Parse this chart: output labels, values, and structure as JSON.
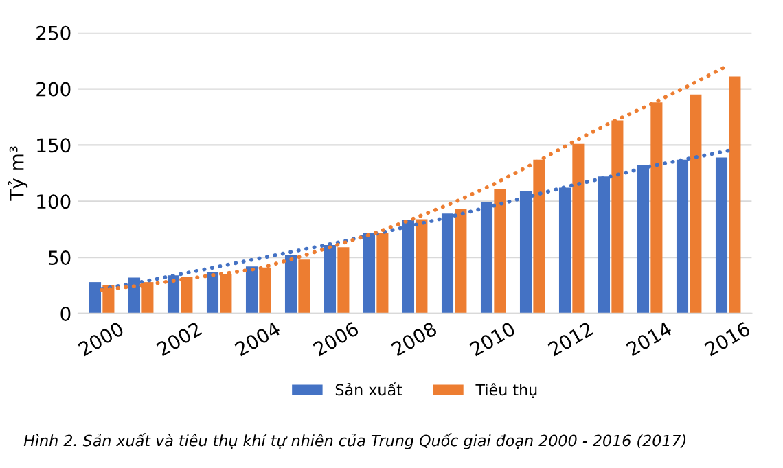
{
  "chart_data": {
    "type": "bar",
    "ylabel": "Tỷ m³",
    "categories": [
      "2000",
      null,
      "2002",
      null,
      "2004",
      null,
      "2006",
      null,
      "2008",
      null,
      "2010",
      null,
      "2012",
      null,
      "2014",
      null,
      "2016"
    ],
    "series": [
      {
        "name": "Sản xuất",
        "color": "#4472c4",
        "values": [
          28,
          32,
          34,
          37,
          42,
          52,
          61,
          72,
          83,
          89,
          99,
          109,
          112,
          122,
          132,
          137,
          139
        ]
      },
      {
        "name": "Tiêu thụ",
        "color": "#ed7d31",
        "values": [
          25,
          28,
          33,
          35,
          41,
          48,
          59,
          72,
          84,
          93,
          111,
          137,
          151,
          172,
          188,
          195,
          211
        ]
      },
      {
        "type": "line",
        "color": "#4472c4",
        "line_style": "dotted",
        "values": [
          22,
          28,
          35,
          42,
          49,
          56,
          63,
          71,
          79,
          87,
          96,
          105,
          114,
          122,
          131,
          138,
          145
        ]
      },
      {
        "type": "line",
        "color": "#ed7d31",
        "line_style": "dotted",
        "values": [
          21,
          25,
          30,
          35,
          40,
          50,
          61,
          72,
          85,
          99,
          115,
          133,
          152,
          170,
          186,
          203,
          221
        ]
      }
    ],
    "ylim": [
      0,
      250
    ],
    "yticks": [
      0,
      50,
      100,
      150,
      200,
      250
    ],
    "grid": "y",
    "legend": "bottom",
    "annotations": [
      "Hình 2. Sản xuất và tiêu thụ khí tự nhiên của Trung Quốc giai đoạn 2000 - 2016 (2017)"
    ]
  }
}
